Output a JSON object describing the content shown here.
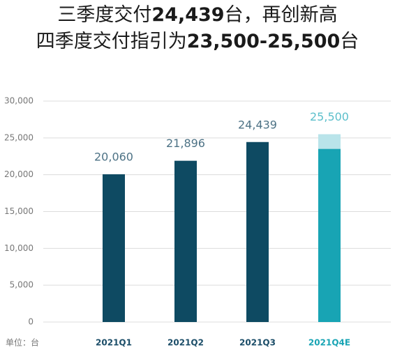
{
  "chart_data": {
    "type": "bar",
    "title_lines": [
      [
        {
          "text": "三季度交付",
          "bold": false
        },
        {
          "text": "24,439",
          "bold": true
        },
        {
          "text": "台，再创新高",
          "bold": false
        }
      ],
      [
        {
          "text": "四季度交付指引为",
          "bold": false
        },
        {
          "text": "23,500-25,500",
          "bold": true
        },
        {
          "text": "台",
          "bold": false
        }
      ]
    ],
    "unit_label": "单位：台",
    "categories": [
      "2021Q1",
      "2021Q2",
      "2021Q3",
      "2021Q4E"
    ],
    "values": [
      20060,
      21896,
      24439,
      25500
    ],
    "value_labels": [
      "20,060",
      "21,896",
      "24,439",
      "25,500"
    ],
    "low_values": [
      null,
      null,
      null,
      23500
    ],
    "colors": [
      "#0e4a62",
      "#0e4a62",
      "#0e4a62",
      "#b9e4ea"
    ],
    "low_color": "#18a4b4",
    "label_colors": [
      "#4d7285",
      "#4d7285",
      "#4d7285",
      "#5cbfcb"
    ],
    "category_colors": [
      "#1b4d68",
      "#1b4d68",
      "#1b4d68",
      "#18a4b4"
    ],
    "ylim": [
      0,
      30000
    ],
    "yticks": [
      0,
      {
        "value": 5000,
        "label": "5,000"
      },
      {
        "value": 10000,
        "label": "10,000"
      },
      {
        "value": 15000,
        "label": "15,000"
      },
      {
        "value": 20000,
        "label": "20,000"
      },
      {
        "value": 25000,
        "label": "25,000"
      },
      {
        "value": 30000,
        "label": "30,000"
      }
    ],
    "grid": true
  }
}
